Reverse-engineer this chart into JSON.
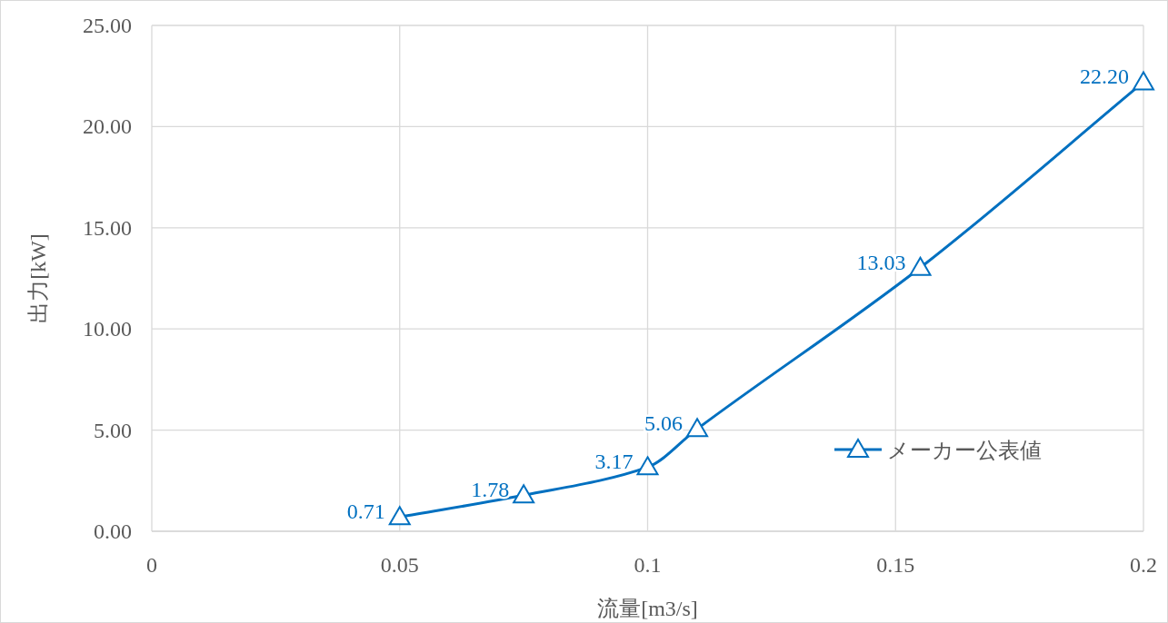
{
  "chart_data": {
    "type": "line",
    "xlabel": "流量[m3/s]",
    "ylabel": "出力[kW]",
    "x": [
      0.05,
      0.075,
      0.1,
      0.11,
      0.155,
      0.2
    ],
    "series": [
      {
        "name": "メーカー公表値",
        "color": "#0070c0",
        "values": [
          0.71,
          1.78,
          3.17,
          5.06,
          13.03,
          22.2
        ],
        "value_labels": [
          "0.71",
          "1.78",
          "3.17",
          "5.06",
          "13.03",
          "22.20"
        ]
      }
    ],
    "xlim": [
      0,
      0.2
    ],
    "xticks": [
      0,
      0.05,
      0.1,
      0.15,
      0.2
    ],
    "ylim": [
      0,
      25
    ],
    "yticks": [
      {
        "value": 0,
        "label": "0.00"
      },
      {
        "value": 5,
        "label": "5.00"
      },
      {
        "value": 10,
        "label": "10.00"
      },
      {
        "value": 15,
        "label": "15.00"
      },
      {
        "value": 20,
        "label": "20.00"
      },
      {
        "value": 25,
        "label": "25.00"
      }
    ],
    "grid": true,
    "legend": "bottom right",
    "marker": "triangle",
    "line_style": "solid"
  }
}
